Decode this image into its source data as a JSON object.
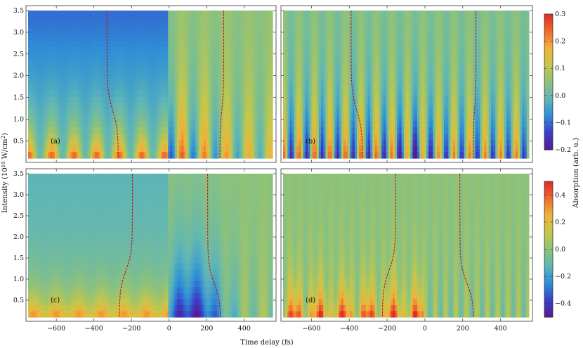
{
  "figure": {
    "xlabel": "Time delay (fs)",
    "ylabel_main": "Intensity (10",
    "ylabel_sup1": "10",
    "ylabel_mid": " W/cm",
    "ylabel_sup2": "2",
    "ylabel_end": ")",
    "cbar_label": "Absorption (arb. u.)"
  },
  "colors": {
    "scale": [
      "#5a1a96",
      "#3b3fc8",
      "#2e8fd6",
      "#5fb6b6",
      "#8ec27a",
      "#c7c64a",
      "#f0b23a",
      "#ef6a2c",
      "#e0282a"
    ],
    "curve": "#cc1010"
  },
  "chart_data": [
    {
      "type": "heatmap",
      "panel_label": "(a)",
      "x_ticks": [
        -600,
        -400,
        -200,
        0,
        200,
        400
      ],
      "y_ticks": [
        0.5,
        1.0,
        1.5,
        2.0,
        2.5,
        3.0,
        3.5
      ],
      "y_tick_labels": [
        "0.5",
        "1.0",
        "1.5",
        "2.0",
        "2.5",
        "3.0",
        "3.5"
      ],
      "xlim": [
        -750,
        550
      ],
      "ylim": [
        0.1,
        3.5
      ],
      "zlim": [
        -0.2,
        0.3
      ],
      "cbar_ticks": [
        -0.2,
        -0.1,
        0.0,
        0.1,
        0.2,
        0.3
      ],
      "cbar_tick_labels": [
        "−0.2",
        "−0.1",
        "0.0",
        "0.1",
        "0.2",
        "0.3"
      ],
      "red_dashed_curves": [
        {
          "x_at_top": -330,
          "x_at_bottom": -270,
          "y_mid": 1.2
        },
        {
          "x_at_top": 290,
          "x_at_bottom": 270,
          "y_mid": 1.2
        }
      ]
    },
    {
      "type": "heatmap",
      "panel_label": "(b)",
      "x_ticks": [
        -600,
        -400,
        -200,
        0,
        200,
        400
      ],
      "y_ticks": [
        0.5,
        1.0,
        1.5,
        2.0,
        2.5,
        3.0,
        3.5
      ],
      "xlim": [
        -750,
        550
      ],
      "ylim": [
        0.1,
        3.5
      ],
      "red_dashed_curves": [
        {
          "x_at_top": -390,
          "x_at_bottom": -330,
          "y_mid": 1.2
        },
        {
          "x_at_top": 270,
          "x_at_bottom": 255,
          "y_mid": 1.2
        }
      ]
    },
    {
      "type": "heatmap",
      "panel_label": "(c)",
      "x_ticks": [
        -600,
        -400,
        -200,
        0,
        200,
        400
      ],
      "x_tick_labels": [
        "−600",
        "−400",
        "−200",
        "0",
        "200",
        "400"
      ],
      "y_ticks": [
        0.5,
        1.0,
        1.5,
        2.0,
        2.5,
        3.0,
        3.5
      ],
      "y_tick_labels": [
        "0.5",
        "1.0",
        "1.5",
        "2.0",
        "2.5",
        "3.0",
        "3.5"
      ],
      "xlim": [
        -750,
        550
      ],
      "ylim": [
        0.1,
        3.5
      ],
      "zlim": [
        -0.5,
        0.5
      ],
      "cbar_ticks": [
        -0.4,
        -0.2,
        0.0,
        0.2,
        0.4
      ],
      "cbar_tick_labels": [
        "−0.4",
        "−0.2",
        "0.0",
        "0.2",
        "0.4"
      ],
      "red_dashed_curves": [
        {
          "x_at_top": -195,
          "x_at_bottom": -265,
          "y_mid": 1.2
        },
        {
          "x_at_top": 205,
          "x_at_bottom": 275,
          "y_mid": 0.9
        }
      ]
    },
    {
      "type": "heatmap",
      "panel_label": "(d)",
      "x_ticks": [
        -600,
        -400,
        -200,
        0,
        200,
        400
      ],
      "x_tick_labels": [
        "−600",
        "−400",
        "−200",
        "0",
        "200",
        "400"
      ],
      "y_ticks": [
        0.5,
        1.0,
        1.5,
        2.0,
        2.5,
        3.0,
        3.5
      ],
      "xlim": [
        -750,
        550
      ],
      "ylim": [
        0.1,
        3.5
      ],
      "red_dashed_curves": [
        {
          "x_at_top": -155,
          "x_at_bottom": -225,
          "y_mid": 1.2
        },
        {
          "x_at_top": 185,
          "x_at_bottom": 260,
          "y_mid": 0.9
        }
      ]
    }
  ]
}
